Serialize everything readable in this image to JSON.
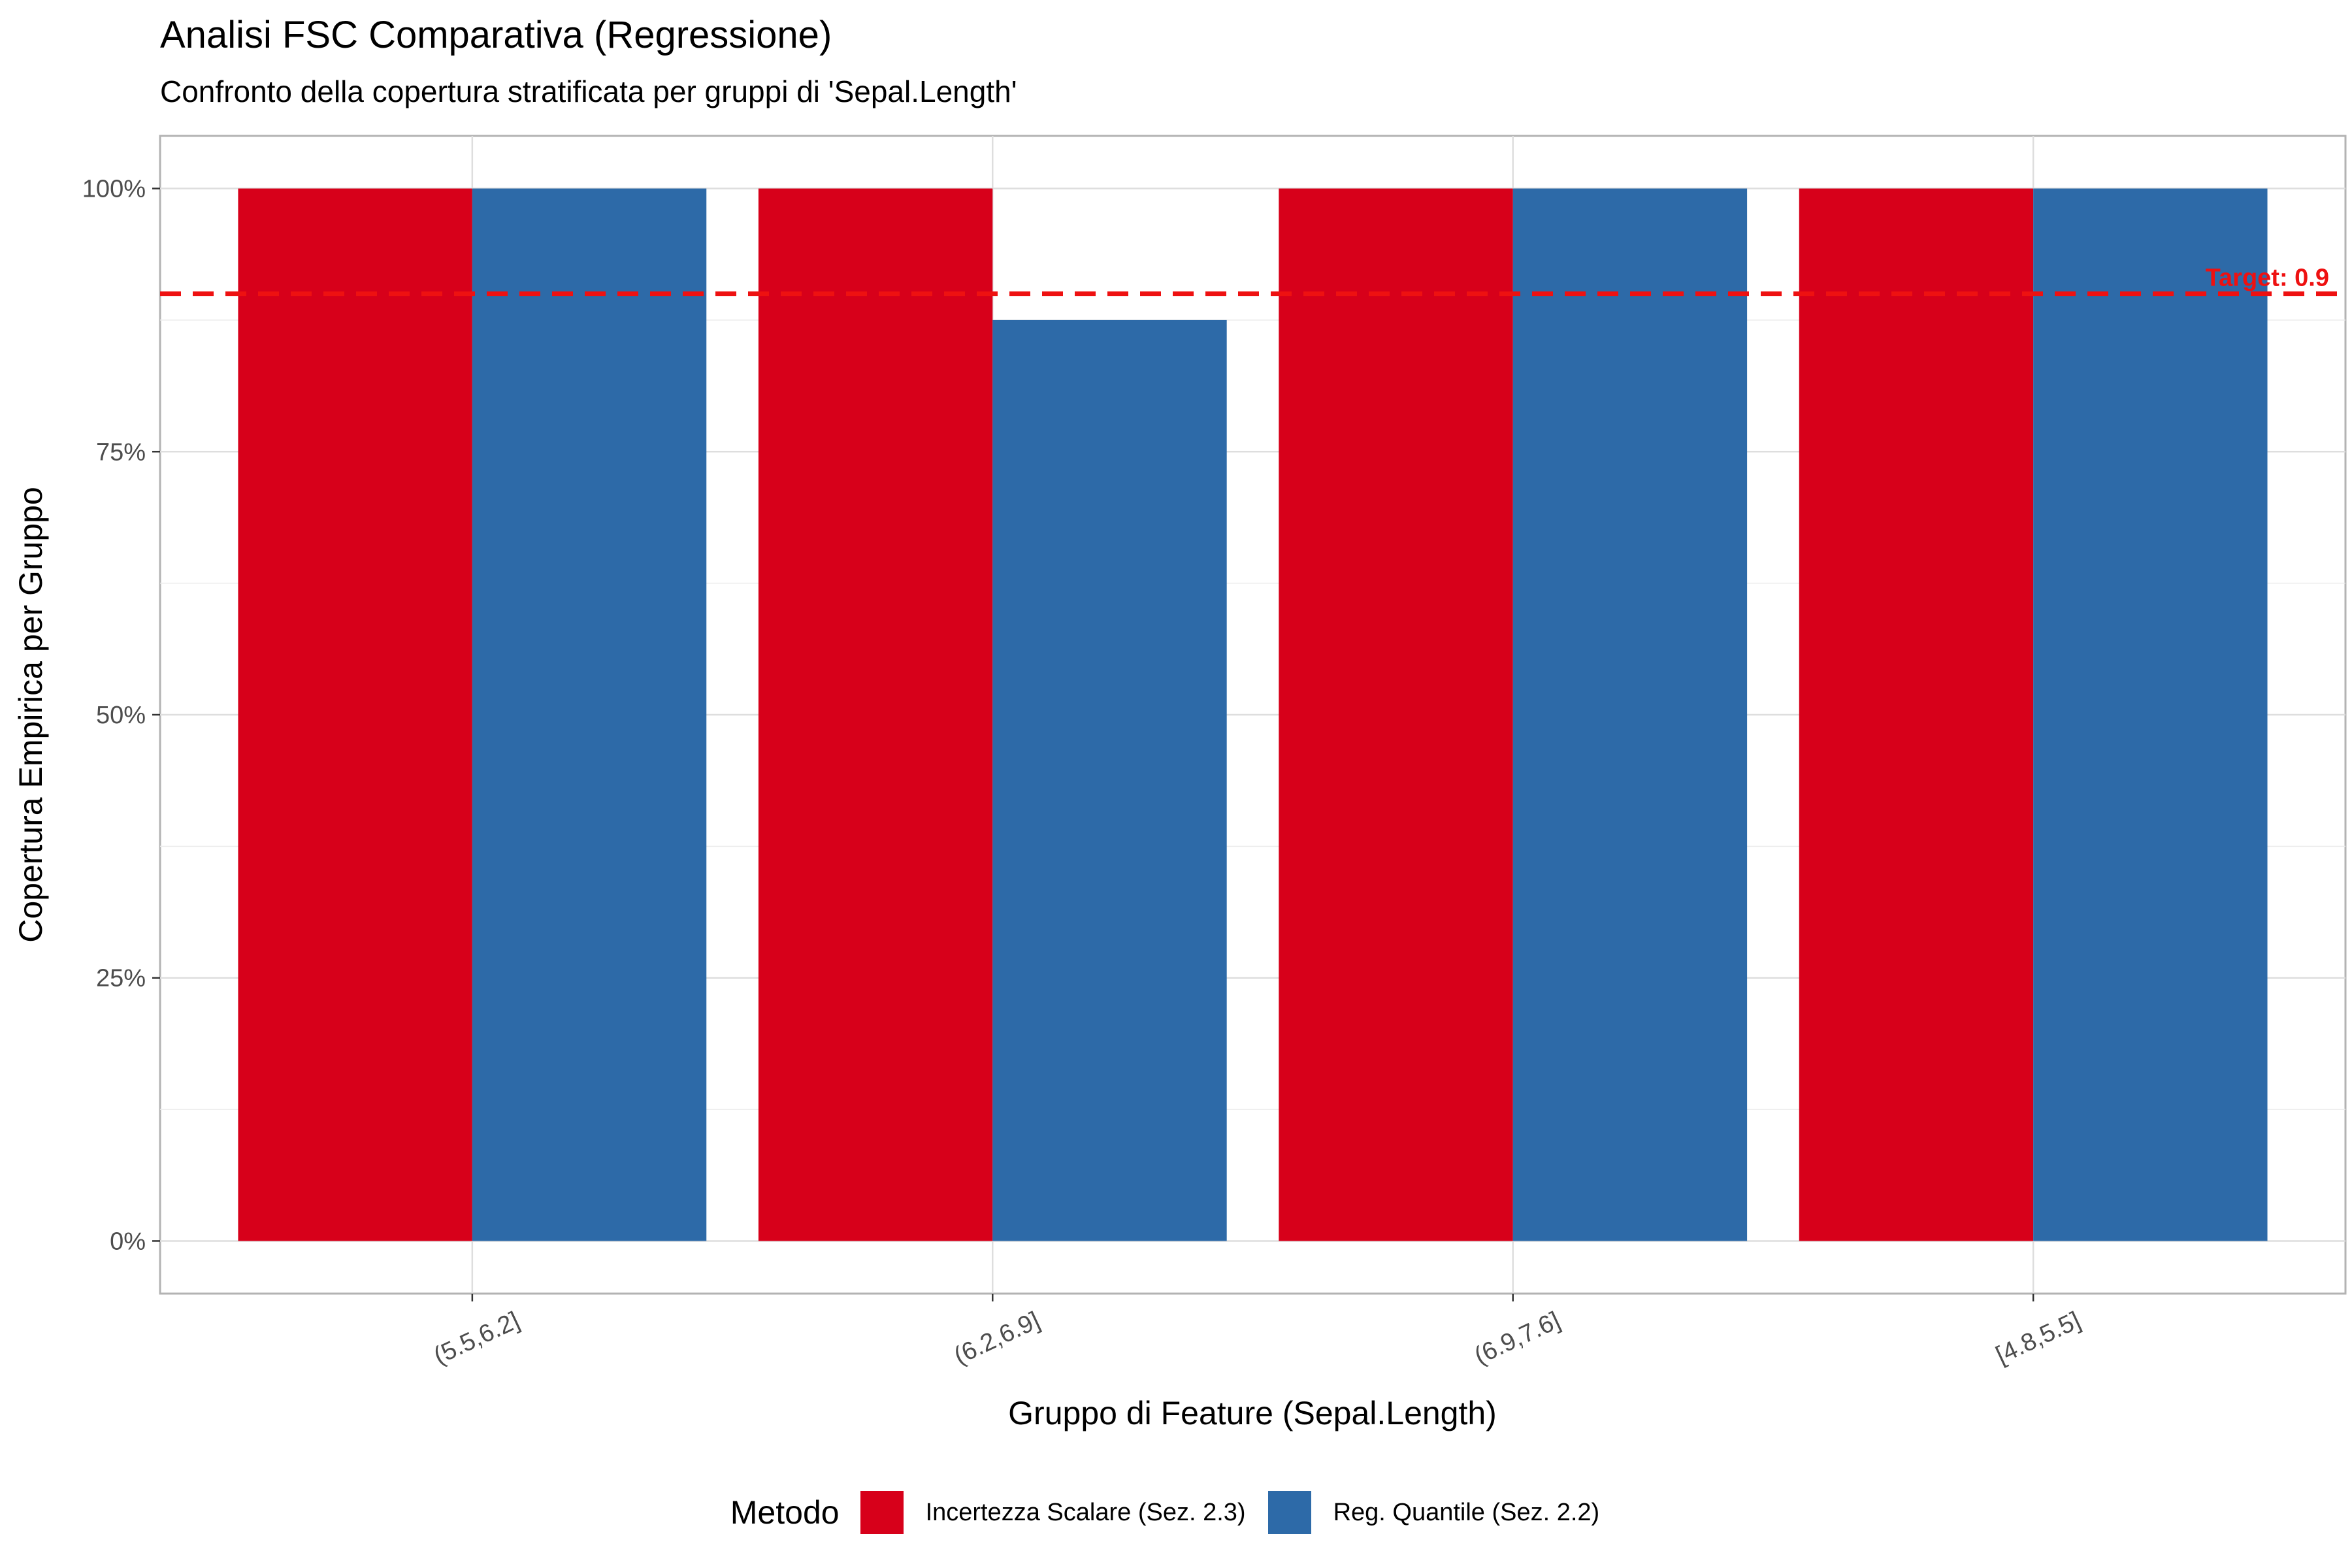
{
  "chart_data": {
    "type": "bar",
    "title": "Analisi FSC Comparativa (Regressione)",
    "subtitle": "Confronto della copertura stratificata per gruppi di 'Sepal.Length'",
    "xlabel": "Gruppo di Feature (Sepal.Length)",
    "ylabel": "Copertura Empirica per Gruppo",
    "categories": [
      "(5.5,6.2]",
      "(6.2,6.9]",
      "(6.9,7.6]",
      "[4.8,5.5]"
    ],
    "series": [
      {
        "name": "Incertezza Scalare (Sez. 2.3)",
        "color": "#d7001a",
        "values": [
          1.0,
          1.0,
          1.0,
          1.0
        ]
      },
      {
        "name": "Reg. Quantile (Sez. 2.2)",
        "color": "#2d6aa8",
        "values": [
          1.0,
          0.875,
          1.0,
          1.0
        ]
      }
    ],
    "ylim": [
      -0.05,
      1.05
    ],
    "yticks": [
      0,
      0.25,
      0.5,
      0.75,
      1.0
    ],
    "ytick_labels": [
      "0%",
      "25%",
      "50%",
      "75%",
      "100%"
    ],
    "target": {
      "value": 0.9,
      "label": "Target: 0.9",
      "color": "#ee1111"
    },
    "legend": {
      "title": "Metodo",
      "position": "bottom"
    },
    "grid": true
  }
}
